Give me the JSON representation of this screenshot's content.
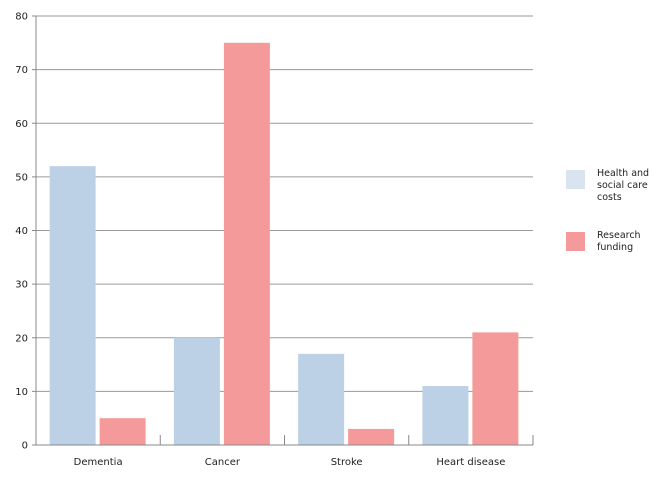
{
  "chart_data": {
    "type": "bar",
    "categories": [
      "Dementia",
      "Cancer",
      "Stroke",
      "Heart disease"
    ],
    "series": [
      {
        "name": "Health and social care costs",
        "color": "#bdd1e6",
        "values": [
          52,
          20,
          17,
          11
        ]
      },
      {
        "name": "Research funding",
        "color": "#f59a9a",
        "values": [
          5,
          75,
          3,
          21
        ]
      }
    ],
    "ylim": [
      0,
      80
    ],
    "yticks": [
      0,
      10,
      20,
      30,
      40,
      50,
      60,
      70,
      80
    ],
    "grid": true,
    "legend_position": "right",
    "title": "",
    "xlabel": "",
    "ylabel": ""
  }
}
